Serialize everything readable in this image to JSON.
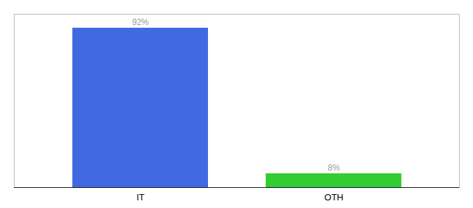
{
  "chart_data": {
    "type": "bar",
    "categories": [
      "IT",
      "OTH"
    ],
    "values": [
      92,
      8
    ],
    "value_labels": [
      "92%",
      "8%"
    ],
    "colors": [
      "#4169e1",
      "#33cc33"
    ],
    "ylim": [
      0,
      100
    ],
    "data_labels": true,
    "tick_labels": "x",
    "grid": false
  }
}
